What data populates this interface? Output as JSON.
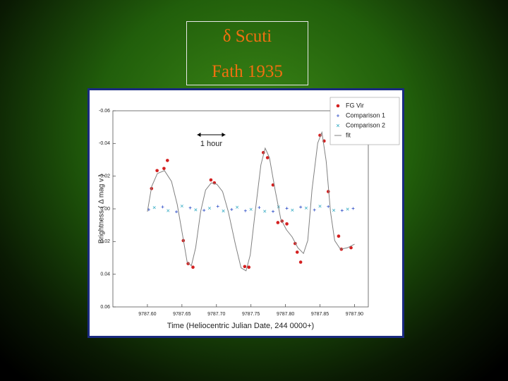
{
  "slide": {
    "title": "δ Scuti",
    "subtitle": "Fath 1935"
  },
  "chart_data": {
    "type": "scatter",
    "xlabel": "Time (Heliocentric Julian Date, 244 0000+)",
    "ylabel": "Brightness ( Δ mag v )",
    "annotation": "1 hour",
    "xlim": [
      9787.55,
      9787.92
    ],
    "ylim": [
      0.06,
      -0.06
    ],
    "xticks": [
      {
        "value": 9787.6,
        "label": "9787.60"
      },
      {
        "value": 9787.65,
        "label": "9787.65"
      },
      {
        "value": 9787.7,
        "label": "9787.70"
      },
      {
        "value": 9787.75,
        "label": "9787.75"
      },
      {
        "value": 9787.8,
        "label": "9787.80"
      },
      {
        "value": 9787.85,
        "label": "9787.85"
      },
      {
        "value": 9787.9,
        "label": "9787.90"
      }
    ],
    "yticks": [
      -0.06,
      -0.04,
      -0.02,
      {
        "value": 0,
        "label": "0.00"
      },
      0.02,
      0.04,
      0.06
    ],
    "grid": false,
    "legend": "top-right",
    "series": [
      {
        "name": "FG Vir",
        "color": "#d42020",
        "marker": "dot",
        "x": [
          9787.606,
          9787.614,
          9787.624,
          9787.629,
          9787.652,
          9787.659,
          9787.666,
          9787.692,
          9787.697,
          9787.741,
          9787.747,
          9787.768,
          9787.774,
          9787.782,
          9787.789,
          9787.795,
          9787.802,
          9787.814,
          9787.817,
          9787.822,
          9787.85,
          9787.856,
          9787.862,
          9787.877,
          9787.881,
          9787.895
        ],
        "values": [
          -0.0124,
          -0.0234,
          -0.0247,
          -0.0296,
          0.0194,
          0.0335,
          0.0357,
          -0.0177,
          -0.0159,
          0.0353,
          0.0357,
          -0.0344,
          -0.0313,
          -0.0146,
          0.0084,
          0.0075,
          0.0092,
          0.0212,
          0.0265,
          0.0326,
          -0.045,
          -0.0415,
          -0.0106,
          0.0167,
          0.0247,
          0.0238
        ]
      },
      {
        "name": "Comparison 1",
        "color": "#3050c8",
        "marker": "plus",
        "x": [
          9787.602,
          9787.622,
          9787.642,
          9787.662,
          9787.682,
          9787.702,
          9787.722,
          9787.742,
          9787.762,
          9787.782,
          9787.802,
          9787.822,
          9787.842,
          9787.862,
          9787.882,
          9787.898
        ],
        "values": [
          0.0005,
          -0.0012,
          0.0018,
          -0.0006,
          0.0009,
          -0.0015,
          0.0004,
          0.0012,
          -0.0008,
          0.0016,
          -0.0003,
          -0.0011,
          0.0007,
          -0.0014,
          0.001,
          -0.0002
        ]
      },
      {
        "name": "Comparison 2",
        "color": "#40b0c8",
        "marker": "cross",
        "x": [
          9787.61,
          9787.63,
          9787.65,
          9787.67,
          9787.69,
          9787.71,
          9787.73,
          9787.75,
          9787.77,
          9787.79,
          9787.81,
          9787.83,
          9787.85,
          9787.87,
          9787.89
        ],
        "values": [
          -0.0008,
          0.0011,
          -0.0017,
          0.0006,
          -0.0004,
          0.0013,
          -0.001,
          0.0003,
          0.0015,
          -0.0012,
          0.0008,
          -0.0005,
          -0.0016,
          0.0009,
          0.0002
        ]
      },
      {
        "name": "fit",
        "color": "#808080",
        "marker": "line",
        "x": [
          9787.6,
          9787.6062,
          9787.6144,
          9787.6247,
          9787.6349,
          9787.6432,
          9787.6514,
          9787.6576,
          9787.6637,
          9787.6699,
          9787.6771,
          9787.6843,
          9787.6925,
          9787.7007,
          9787.7089,
          9787.7172,
          9787.7274,
          9787.7357,
          9787.7429,
          9787.749,
          9787.7562,
          9787.7644,
          9787.7706,
          9787.7768,
          9787.785,
          9787.7932,
          9787.8014,
          9787.8097,
          9787.8179,
          9787.8261,
          9787.8323,
          9787.8384,
          9787.8467,
          9787.8528,
          9787.859,
          9787.8652,
          9787.8713,
          9787.8796,
          9787.8898,
          9787.9001
        ],
        "values": [
          0.0017,
          -0.0137,
          -0.0216,
          -0.0234,
          -0.0168,
          -0.0027,
          0.0172,
          0.0326,
          0.0348,
          0.0238,
          0.0017,
          -0.0115,
          -0.0159,
          -0.015,
          -0.0106,
          0.0017,
          0.0216,
          0.0361,
          0.0379,
          0.0282,
          0.0017,
          -0.0269,
          -0.0371,
          -0.0313,
          -0.0115,
          0.0062,
          0.0128,
          0.0172,
          0.0238,
          0.0273,
          0.0194,
          -0.0115,
          -0.0402,
          -0.0468,
          -0.0291,
          0.0017,
          0.0194,
          0.0247,
          0.0238,
          0.0216
        ]
      }
    ]
  }
}
